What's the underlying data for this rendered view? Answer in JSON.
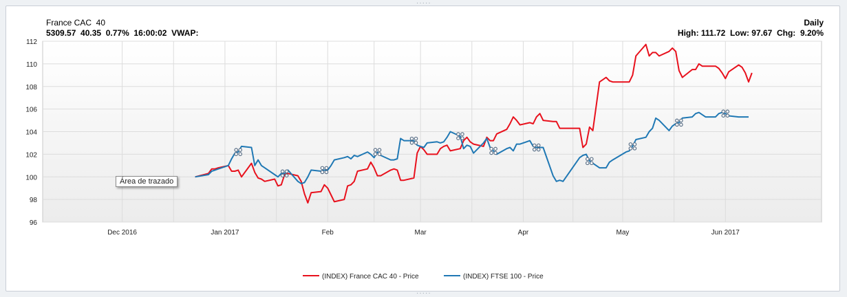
{
  "header": {
    "title": "France CAC  40",
    "quote": "5309.57  40.35  0.77%  16:00:02  VWAP:",
    "period": "Daily",
    "stats": "High: 111.72  Low: 97.67  Chg:  9.20%"
  },
  "tooltip": {
    "text": "Área de trazado"
  },
  "colors": {
    "cac": "#e8101c",
    "ftse": "#1f78b4",
    "grid": "#dcdcdc"
  },
  "chart_data": {
    "type": "line",
    "y_ticks": [
      96,
      98,
      100,
      102,
      104,
      106,
      108,
      110,
      112
    ],
    "ylim": [
      96,
      112
    ],
    "x_tick_labels": [
      "Dec 2016",
      "Jan 2017",
      "Feb",
      "Mar",
      "Apr",
      "May",
      "Jun 2017"
    ],
    "grid": true,
    "legend_position": "bottom",
    "series": [
      {
        "name": "(INDEX) France CAC 40 - Price",
        "color": "#e8101c",
        "points": [
          [
            "2016-12-23",
            100.0
          ],
          [
            "2016-12-27",
            100.3
          ],
          [
            "2016-12-28",
            100.7
          ],
          [
            "2016-12-29",
            100.7
          ],
          [
            "2016-12-30",
            100.8
          ],
          [
            "2017-01-02",
            101.0
          ],
          [
            "2017-01-03",
            100.5
          ],
          [
            "2017-01-04",
            100.5
          ],
          [
            "2017-01-05",
            100.6
          ],
          [
            "2017-01-06",
            100.0
          ],
          [
            "2017-01-09",
            101.2
          ],
          [
            "2017-01-10",
            100.4
          ],
          [
            "2017-01-11",
            99.9
          ],
          [
            "2017-01-12",
            99.8
          ],
          [
            "2017-01-13",
            99.6
          ],
          [
            "2017-01-16",
            99.8
          ],
          [
            "2017-01-17",
            99.2
          ],
          [
            "2017-01-18",
            99.3
          ],
          [
            "2017-01-19",
            100.2
          ],
          [
            "2017-01-20",
            100.3
          ],
          [
            "2017-01-23",
            100.1
          ],
          [
            "2017-01-24",
            99.6
          ],
          [
            "2017-01-25",
            98.5
          ],
          [
            "2017-01-26",
            97.7
          ],
          [
            "2017-01-27",
            98.6
          ],
          [
            "2017-01-30",
            98.7
          ],
          [
            "2017-01-31",
            99.3
          ],
          [
            "2017-02-01",
            99.0
          ],
          [
            "2017-02-02",
            98.4
          ],
          [
            "2017-02-03",
            97.8
          ],
          [
            "2017-02-06",
            98.0
          ],
          [
            "2017-02-07",
            99.2
          ],
          [
            "2017-02-08",
            99.3
          ],
          [
            "2017-02-09",
            99.6
          ],
          [
            "2017-02-10",
            100.5
          ],
          [
            "2017-02-13",
            100.7
          ],
          [
            "2017-02-14",
            101.3
          ],
          [
            "2017-02-15",
            100.8
          ],
          [
            "2017-02-16",
            100.1
          ],
          [
            "2017-02-17",
            100.1
          ],
          [
            "2017-02-20",
            100.6
          ],
          [
            "2017-02-21",
            100.7
          ],
          [
            "2017-02-22",
            100.6
          ],
          [
            "2017-02-23",
            99.7
          ],
          [
            "2017-02-24",
            99.7
          ],
          [
            "2017-02-27",
            99.9
          ],
          [
            "2017-02-28",
            102.1
          ],
          [
            "2017-03-01",
            102.7
          ],
          [
            "2017-03-02",
            102.4
          ],
          [
            "2017-03-03",
            102.0
          ],
          [
            "2017-03-06",
            102.0
          ],
          [
            "2017-03-07",
            102.5
          ],
          [
            "2017-03-08",
            102.7
          ],
          [
            "2017-03-09",
            102.8
          ],
          [
            "2017-03-10",
            102.3
          ],
          [
            "2017-03-13",
            102.5
          ],
          [
            "2017-03-14",
            103.2
          ],
          [
            "2017-03-15",
            103.5
          ],
          [
            "2017-03-16",
            103.1
          ],
          [
            "2017-03-17",
            102.9
          ],
          [
            "2017-03-20",
            102.7
          ],
          [
            "2017-03-21",
            103.5
          ],
          [
            "2017-03-22",
            103.2
          ],
          [
            "2017-03-23",
            103.2
          ],
          [
            "2017-03-24",
            103.8
          ],
          [
            "2017-03-27",
            104.2
          ],
          [
            "2017-03-28",
            104.7
          ],
          [
            "2017-03-29",
            105.3
          ],
          [
            "2017-03-30",
            105.0
          ],
          [
            "2017-03-31",
            104.6
          ],
          [
            "2017-04-03",
            104.8
          ],
          [
            "2017-04-04",
            104.7
          ],
          [
            "2017-04-05",
            105.3
          ],
          [
            "2017-04-06",
            105.6
          ],
          [
            "2017-04-07",
            105.0
          ],
          [
            "2017-04-10",
            104.9
          ],
          [
            "2017-04-11",
            104.9
          ],
          [
            "2017-04-12",
            104.3
          ],
          [
            "2017-04-13",
            104.3
          ],
          [
            "2017-04-18",
            104.3
          ],
          [
            "2017-04-19",
            102.6
          ],
          [
            "2017-04-20",
            102.9
          ],
          [
            "2017-04-21",
            104.4
          ],
          [
            "2017-04-22",
            104.1
          ],
          [
            "2017-04-24",
            108.4
          ],
          [
            "2017-04-25",
            108.6
          ],
          [
            "2017-04-26",
            108.8
          ],
          [
            "2017-04-27",
            108.5
          ],
          [
            "2017-04-28",
            108.4
          ],
          [
            "2017-05-02",
            108.4
          ],
          [
            "2017-05-03",
            108.4
          ],
          [
            "2017-05-04",
            109.0
          ],
          [
            "2017-05-05",
            110.7
          ],
          [
            "2017-05-08",
            111.72
          ],
          [
            "2017-05-09",
            110.7
          ],
          [
            "2017-05-10",
            111.0
          ],
          [
            "2017-05-11",
            111.0
          ],
          [
            "2017-05-12",
            110.7
          ],
          [
            "2017-05-15",
            111.1
          ],
          [
            "2017-05-16",
            111.4
          ],
          [
            "2017-05-17",
            111.1
          ],
          [
            "2017-05-18",
            109.4
          ],
          [
            "2017-05-19",
            108.8
          ],
          [
            "2017-05-22",
            109.5
          ],
          [
            "2017-05-23",
            109.5
          ],
          [
            "2017-05-24",
            110.0
          ],
          [
            "2017-05-25",
            109.8
          ],
          [
            "2017-05-26",
            109.8
          ],
          [
            "2017-05-29",
            109.8
          ],
          [
            "2017-05-30",
            109.6
          ],
          [
            "2017-05-31",
            109.2
          ],
          [
            "2017-06-01",
            108.7
          ],
          [
            "2017-06-02",
            109.3
          ],
          [
            "2017-06-05",
            109.9
          ],
          [
            "2017-06-06",
            109.7
          ],
          [
            "2017-06-07",
            109.2
          ],
          [
            "2017-06-08",
            108.4
          ],
          [
            "2017-06-09",
            109.2
          ]
        ]
      },
      {
        "name": "(INDEX) FTSE 100 - Price",
        "color": "#1f78b4",
        "points": [
          [
            "2016-12-23",
            100.0
          ],
          [
            "2016-12-27",
            100.2
          ],
          [
            "2016-12-28",
            100.5
          ],
          [
            "2016-12-29",
            100.6
          ],
          [
            "2016-12-30",
            100.7
          ],
          [
            "2017-01-02",
            101.0
          ],
          [
            "2017-01-03",
            101.6
          ],
          [
            "2017-01-04",
            102.1
          ],
          [
            "2017-01-05",
            102.2
          ],
          [
            "2017-01-06",
            102.7
          ],
          [
            "2017-01-09",
            102.6
          ],
          [
            "2017-01-10",
            101.0
          ],
          [
            "2017-01-11",
            101.5
          ],
          [
            "2017-01-12",
            101.0
          ],
          [
            "2017-01-13",
            100.8
          ],
          [
            "2017-01-16",
            100.2
          ],
          [
            "2017-01-17",
            100.0
          ],
          [
            "2017-01-18",
            100.3
          ],
          [
            "2017-01-19",
            100.3
          ],
          [
            "2017-01-20",
            100.6
          ],
          [
            "2017-01-23",
            99.6
          ],
          [
            "2017-01-24",
            99.4
          ],
          [
            "2017-01-25",
            99.5
          ],
          [
            "2017-01-26",
            100.0
          ],
          [
            "2017-01-27",
            100.6
          ],
          [
            "2017-01-30",
            100.5
          ],
          [
            "2017-01-31",
            100.6
          ],
          [
            "2017-02-01",
            100.6
          ],
          [
            "2017-02-02",
            101.0
          ],
          [
            "2017-02-03",
            101.5
          ],
          [
            "2017-02-06",
            101.7
          ],
          [
            "2017-02-07",
            101.8
          ],
          [
            "2017-02-08",
            101.6
          ],
          [
            "2017-02-09",
            101.9
          ],
          [
            "2017-02-10",
            101.8
          ],
          [
            "2017-02-13",
            102.2
          ],
          [
            "2017-02-14",
            102.0
          ],
          [
            "2017-02-15",
            101.7
          ],
          [
            "2017-02-16",
            102.2
          ],
          [
            "2017-02-17",
            101.9
          ],
          [
            "2017-02-20",
            101.5
          ],
          [
            "2017-02-21",
            101.5
          ],
          [
            "2017-02-22",
            101.6
          ],
          [
            "2017-02-23",
            103.4
          ],
          [
            "2017-02-24",
            103.2
          ],
          [
            "2017-02-27",
            103.2
          ],
          [
            "2017-02-28",
            102.8
          ],
          [
            "2017-03-01",
            102.7
          ],
          [
            "2017-03-02",
            102.6
          ],
          [
            "2017-03-03",
            103.0
          ],
          [
            "2017-03-06",
            103.1
          ],
          [
            "2017-03-07",
            103.0
          ],
          [
            "2017-03-08",
            103.1
          ],
          [
            "2017-03-09",
            103.5
          ],
          [
            "2017-03-10",
            104.0
          ],
          [
            "2017-03-13",
            103.6
          ],
          [
            "2017-03-14",
            102.5
          ],
          [
            "2017-03-15",
            102.8
          ],
          [
            "2017-03-16",
            102.7
          ],
          [
            "2017-03-17",
            102.1
          ],
          [
            "2017-03-20",
            103.0
          ],
          [
            "2017-03-21",
            103.4
          ],
          [
            "2017-03-22",
            102.6
          ],
          [
            "2017-03-23",
            102.3
          ],
          [
            "2017-03-24",
            102.0
          ],
          [
            "2017-03-27",
            102.5
          ],
          [
            "2017-03-28",
            102.6
          ],
          [
            "2017-03-29",
            102.3
          ],
          [
            "2017-03-30",
            102.9
          ],
          [
            "2017-03-31",
            102.9
          ],
          [
            "2017-04-03",
            103.2
          ],
          [
            "2017-04-04",
            102.7
          ],
          [
            "2017-04-05",
            102.6
          ],
          [
            "2017-04-06",
            102.6
          ],
          [
            "2017-04-07",
            102.6
          ],
          [
            "2017-04-10",
            100.1
          ],
          [
            "2017-04-11",
            99.6
          ],
          [
            "2017-04-12",
            99.7
          ],
          [
            "2017-04-13",
            99.6
          ],
          [
            "2017-04-18",
            101.7
          ],
          [
            "2017-04-19",
            101.9
          ],
          [
            "2017-04-20",
            102.0
          ],
          [
            "2017-04-21",
            101.4
          ],
          [
            "2017-04-24",
            100.8
          ],
          [
            "2017-04-25",
            100.8
          ],
          [
            "2017-04-26",
            100.8
          ],
          [
            "2017-04-27",
            101.3
          ],
          [
            "2017-04-28",
            101.5
          ],
          [
            "2017-05-02",
            102.2
          ],
          [
            "2017-05-03",
            102.3
          ],
          [
            "2017-05-04",
            102.7
          ],
          [
            "2017-05-05",
            103.3
          ],
          [
            "2017-05-08",
            103.5
          ],
          [
            "2017-05-09",
            104.0
          ],
          [
            "2017-05-10",
            104.3
          ],
          [
            "2017-05-11",
            105.2
          ],
          [
            "2017-05-12",
            105.0
          ],
          [
            "2017-05-15",
            104.1
          ],
          [
            "2017-05-16",
            104.5
          ],
          [
            "2017-05-17",
            104.7
          ],
          [
            "2017-05-18",
            104.8
          ],
          [
            "2017-05-19",
            105.2
          ],
          [
            "2017-05-22",
            105.3
          ],
          [
            "2017-05-23",
            105.6
          ],
          [
            "2017-05-24",
            105.7
          ],
          [
            "2017-05-25",
            105.5
          ],
          [
            "2017-05-26",
            105.3
          ],
          [
            "2017-05-29",
            105.3
          ],
          [
            "2017-05-30",
            105.6
          ],
          [
            "2017-05-31",
            105.7
          ],
          [
            "2017-06-01",
            105.6
          ],
          [
            "2017-06-02",
            105.4
          ],
          [
            "2017-06-05",
            105.3
          ],
          [
            "2017-06-06",
            105.3
          ],
          [
            "2017-06-07",
            105.3
          ],
          [
            "2017-06-08",
            105.3
          ]
        ]
      }
    ],
    "event_markers": [
      {
        "series": 1,
        "date": "2017-01-05"
      },
      {
        "series": 1,
        "date": "2017-01-19"
      },
      {
        "series": 1,
        "date": "2017-01-31"
      },
      {
        "series": 1,
        "date": "2017-02-16"
      },
      {
        "series": 1,
        "date": "2017-02-27"
      },
      {
        "series": 1,
        "date": "2017-03-13"
      },
      {
        "series": 1,
        "date": "2017-03-23"
      },
      {
        "series": 1,
        "date": "2017-04-05"
      },
      {
        "series": 1,
        "date": "2017-04-21"
      },
      {
        "series": 1,
        "date": "2017-05-04"
      },
      {
        "series": 1,
        "date": "2017-05-18"
      },
      {
        "series": 1,
        "date": "2017-06-01"
      }
    ]
  }
}
